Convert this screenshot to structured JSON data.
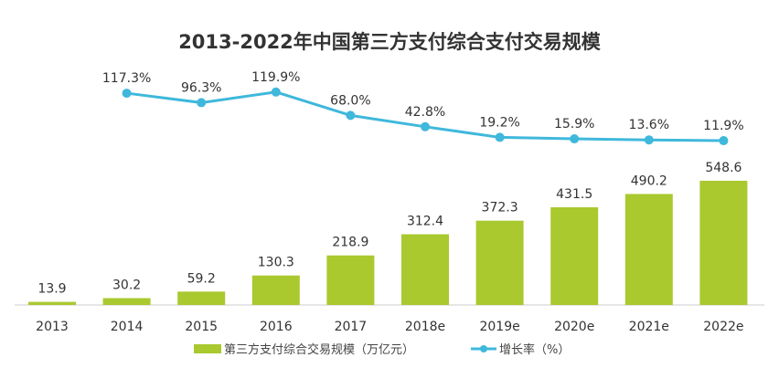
{
  "chart_data": {
    "type": "bar+line",
    "title": "2013-2022年中国第三方支付综合支付交易规模",
    "categories": [
      "2013",
      "2014",
      "2015",
      "2016",
      "2017",
      "2018e",
      "2019e",
      "2020e",
      "2021e",
      "2022e"
    ],
    "series": [
      {
        "name": "第三方支付综合交易规模（万亿元）",
        "type": "bar",
        "color": "#a9c92f",
        "values": [
          13.9,
          30.2,
          59.2,
          130.3,
          218.9,
          312.4,
          372.3,
          431.5,
          490.2,
          548.6
        ],
        "labels": [
          "13.9",
          "30.2",
          "59.2",
          "130.3",
          "218.9",
          "312.4",
          "372.3",
          "431.5",
          "490.2",
          "548.6"
        ]
      },
      {
        "name": "增长率（%）",
        "type": "line",
        "color": "#3fb8dc",
        "values": [
          null,
          117.3,
          96.3,
          119.9,
          68.0,
          42.8,
          19.2,
          15.9,
          13.6,
          11.9
        ],
        "labels": [
          "",
          "117.3%",
          "96.3%",
          "119.9%",
          "68.0%",
          "42.8%",
          "19.2%",
          "15.9%",
          "13.6%",
          "11.9%"
        ]
      }
    ],
    "legend": "bottom",
    "grid": false
  }
}
